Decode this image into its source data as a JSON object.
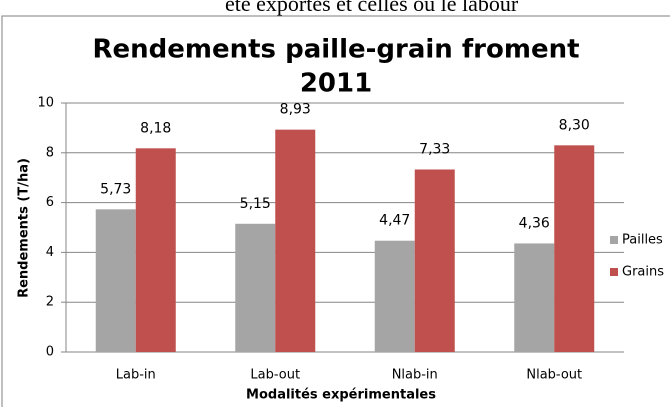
{
  "header_text": "été exportés et celles où le labour",
  "chart_data": {
    "type": "bar",
    "title": [
      "Rendements paille-grain froment",
      "2011"
    ],
    "y_label": "Rendements (T/ha)",
    "x_label": "Modalités expérimentales",
    "categories": [
      "Lab-in",
      "Lab-out",
      "Nlab-in",
      "Nlab-out"
    ],
    "series": [
      {
        "name": "Pailles",
        "color": "#a5a5a5",
        "values": [
          5.73,
          5.15,
          4.47,
          4.36
        ],
        "value_labels": [
          "5,73",
          "5,15",
          "4,47",
          "4,36"
        ]
      },
      {
        "name": "Grains",
        "color": "#c0504d",
        "values": [
          8.18,
          8.93,
          7.33,
          8.3
        ],
        "value_labels": [
          "8,18",
          "8,93",
          "7,33",
          "8,30"
        ]
      }
    ],
    "ylim": [
      0,
      10
    ],
    "yticks": [
      0,
      2,
      4,
      6,
      8,
      10
    ],
    "grid": true,
    "legend": "right"
  }
}
